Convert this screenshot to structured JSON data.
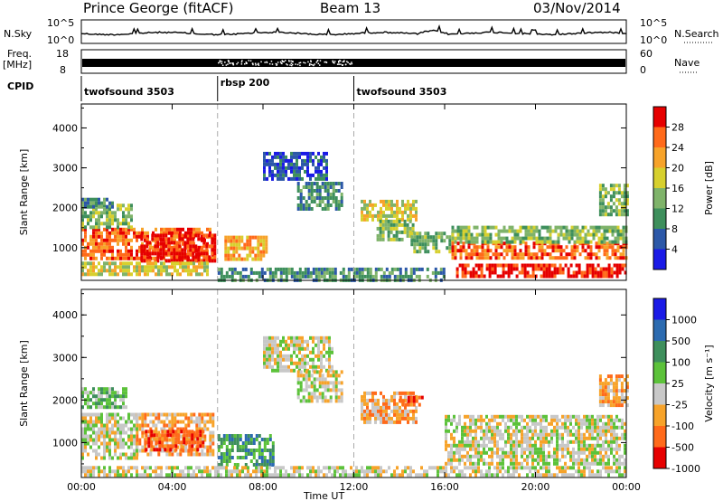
{
  "header": {
    "station": "Prince George (fitACF)",
    "beam": "Beam 13",
    "date": "03/Nov/2014"
  },
  "strips": {
    "nsky_label": "N.Sky",
    "nsky_ticks": [
      "10^5",
      "10^0"
    ],
    "nsearch_label": "N.Search",
    "nsearch_ticks": [
      "10^5",
      "10^0"
    ],
    "freq_label_1": "Freq.",
    "freq_label_2": "[MHz]",
    "freq_ticks": [
      "18",
      "8"
    ],
    "nave_label": "Nave",
    "nave_ticks": [
      "60",
      "0"
    ],
    "cpid_label": "CPID",
    "cpid_segments": [
      {
        "name": "twofsound 3503",
        "start": 0,
        "end": 6
      },
      {
        "name": "rbsp 200",
        "start": 6,
        "end": 12
      },
      {
        "name": "twofsound 3503",
        "start": 12,
        "end": 24
      }
    ]
  },
  "chart_data": [
    {
      "type": "heatmap",
      "panel": "power",
      "xlabel": "Time UT",
      "ylabel": "Slant Range [km]",
      "xlim": [
        0,
        24
      ],
      "ylim": [
        180,
        4600
      ],
      "x_ticks": [
        "00:00",
        "04:00",
        "08:00",
        "12:00",
        "16:00",
        "20:00",
        "00:00"
      ],
      "y_ticks": [
        1000,
        2000,
        3000,
        4000
      ],
      "colorbar_label": "Power [dB]",
      "colorbar_ticks": [
        "28",
        "24",
        "20",
        "16",
        "12",
        "8",
        "4"
      ],
      "colorbar_colors": [
        "#e60000",
        "#ff6a1a",
        "#f7a32a",
        "#d7d02e",
        "#7fb36a",
        "#3e8f5c",
        "#2c58a8",
        "#1a1ae6"
      ],
      "regions": [
        {
          "t0": 0.0,
          "t1": 5.8,
          "r0": 750,
          "r1": 1500,
          "level": 6
        },
        {
          "t0": 2.6,
          "t1": 5.9,
          "r0": 700,
          "r1": 1350,
          "level": 7
        },
        {
          "t0": 0.0,
          "t1": 2.2,
          "r0": 1500,
          "r1": 2100,
          "level": 3
        },
        {
          "t0": 0.0,
          "t1": 1.4,
          "r0": 2000,
          "r1": 2250,
          "level": 2
        },
        {
          "t0": 0.0,
          "t1": 5.5,
          "r0": 300,
          "r1": 650,
          "level": 4
        },
        {
          "t0": 6.3,
          "t1": 8.2,
          "r0": 700,
          "r1": 1300,
          "level": 5
        },
        {
          "t0": 8.0,
          "t1": 10.8,
          "r0": 2700,
          "r1": 3400,
          "level": 1
        },
        {
          "t0": 9.5,
          "t1": 11.5,
          "r0": 2000,
          "r1": 2650,
          "level": 2
        },
        {
          "t0": 12.3,
          "t1": 14.8,
          "r0": 1700,
          "r1": 2200,
          "level": 4
        },
        {
          "t0": 13.0,
          "t1": 14.6,
          "r0": 1200,
          "r1": 1700,
          "level": 3
        },
        {
          "t0": 14.5,
          "t1": 16.3,
          "r0": 900,
          "r1": 1400,
          "level": 3
        },
        {
          "t0": 16.3,
          "t1": 24.0,
          "r0": 700,
          "r1": 1150,
          "level": 6
        },
        {
          "t0": 16.3,
          "t1": 24.0,
          "r0": 1150,
          "r1": 1550,
          "level": 3
        },
        {
          "t0": 16.5,
          "t1": 24.0,
          "r0": 300,
          "r1": 600,
          "level": 7
        },
        {
          "t0": 6.0,
          "t1": 16.0,
          "r0": 200,
          "r1": 500,
          "level": 2
        },
        {
          "t0": 22.8,
          "t1": 24.0,
          "r0": 1800,
          "r1": 2600,
          "level": 3
        }
      ]
    },
    {
      "type": "heatmap",
      "panel": "velocity",
      "xlabel": "Time UT",
      "ylabel": "Slant Range [km]",
      "xlim": [
        0,
        24
      ],
      "ylim": [
        180,
        4600
      ],
      "x_ticks": [
        "00:00",
        "04:00",
        "08:00",
        "12:00",
        "16:00",
        "20:00",
        "00:00"
      ],
      "y_ticks": [
        1000,
        2000,
        3000,
        4000
      ],
      "colorbar_label": "Velocity [m s⁻¹]",
      "colorbar_ticks": [
        "1000",
        "500",
        "100",
        "25",
        "-25",
        "-100",
        "-500",
        "-1000"
      ],
      "colorbar_colors": [
        "#1a1ae6",
        "#2c6bb0",
        "#3e8f5c",
        "#5cc23a",
        "#c8c8c8",
        "#f7a32a",
        "#ff6a1a",
        "#e60000"
      ],
      "regions": [
        {
          "t0": 0.0,
          "t1": 2.4,
          "r0": 600,
          "r1": 1700,
          "level": 4
        },
        {
          "t0": 2.4,
          "t1": 5.8,
          "r0": 700,
          "r1": 1700,
          "level": 5
        },
        {
          "t0": 2.8,
          "t1": 5.4,
          "r0": 800,
          "r1": 1300,
          "level": 6
        },
        {
          "t0": 0.0,
          "t1": 2.0,
          "r0": 1800,
          "r1": 2300,
          "level": 3
        },
        {
          "t0": 6.0,
          "t1": 8.5,
          "r0": 500,
          "r1": 1200,
          "level": 2
        },
        {
          "t0": 8.0,
          "t1": 11.0,
          "r0": 2700,
          "r1": 3500,
          "level": 4
        },
        {
          "t0": 9.5,
          "t1": 11.5,
          "r0": 2000,
          "r1": 2700,
          "level": 4
        },
        {
          "t0": 12.3,
          "t1": 14.8,
          "r0": 1500,
          "r1": 2200,
          "level": 5
        },
        {
          "t0": 14.0,
          "t1": 15.0,
          "r0": 1900,
          "r1": 2100,
          "level": 6
        },
        {
          "t0": 16.0,
          "t1": 24.0,
          "r0": 500,
          "r1": 1650,
          "level": 4
        },
        {
          "t0": 0.0,
          "t1": 24.0,
          "r0": 200,
          "r1": 450,
          "level": 4
        },
        {
          "t0": 22.8,
          "t1": 24.0,
          "r0": 1900,
          "r1": 2600,
          "level": 5
        }
      ]
    },
    {
      "type": "line",
      "panel": "nsky",
      "ylim_label": [
        "10^0",
        "10^5"
      ],
      "description": ""
    }
  ]
}
